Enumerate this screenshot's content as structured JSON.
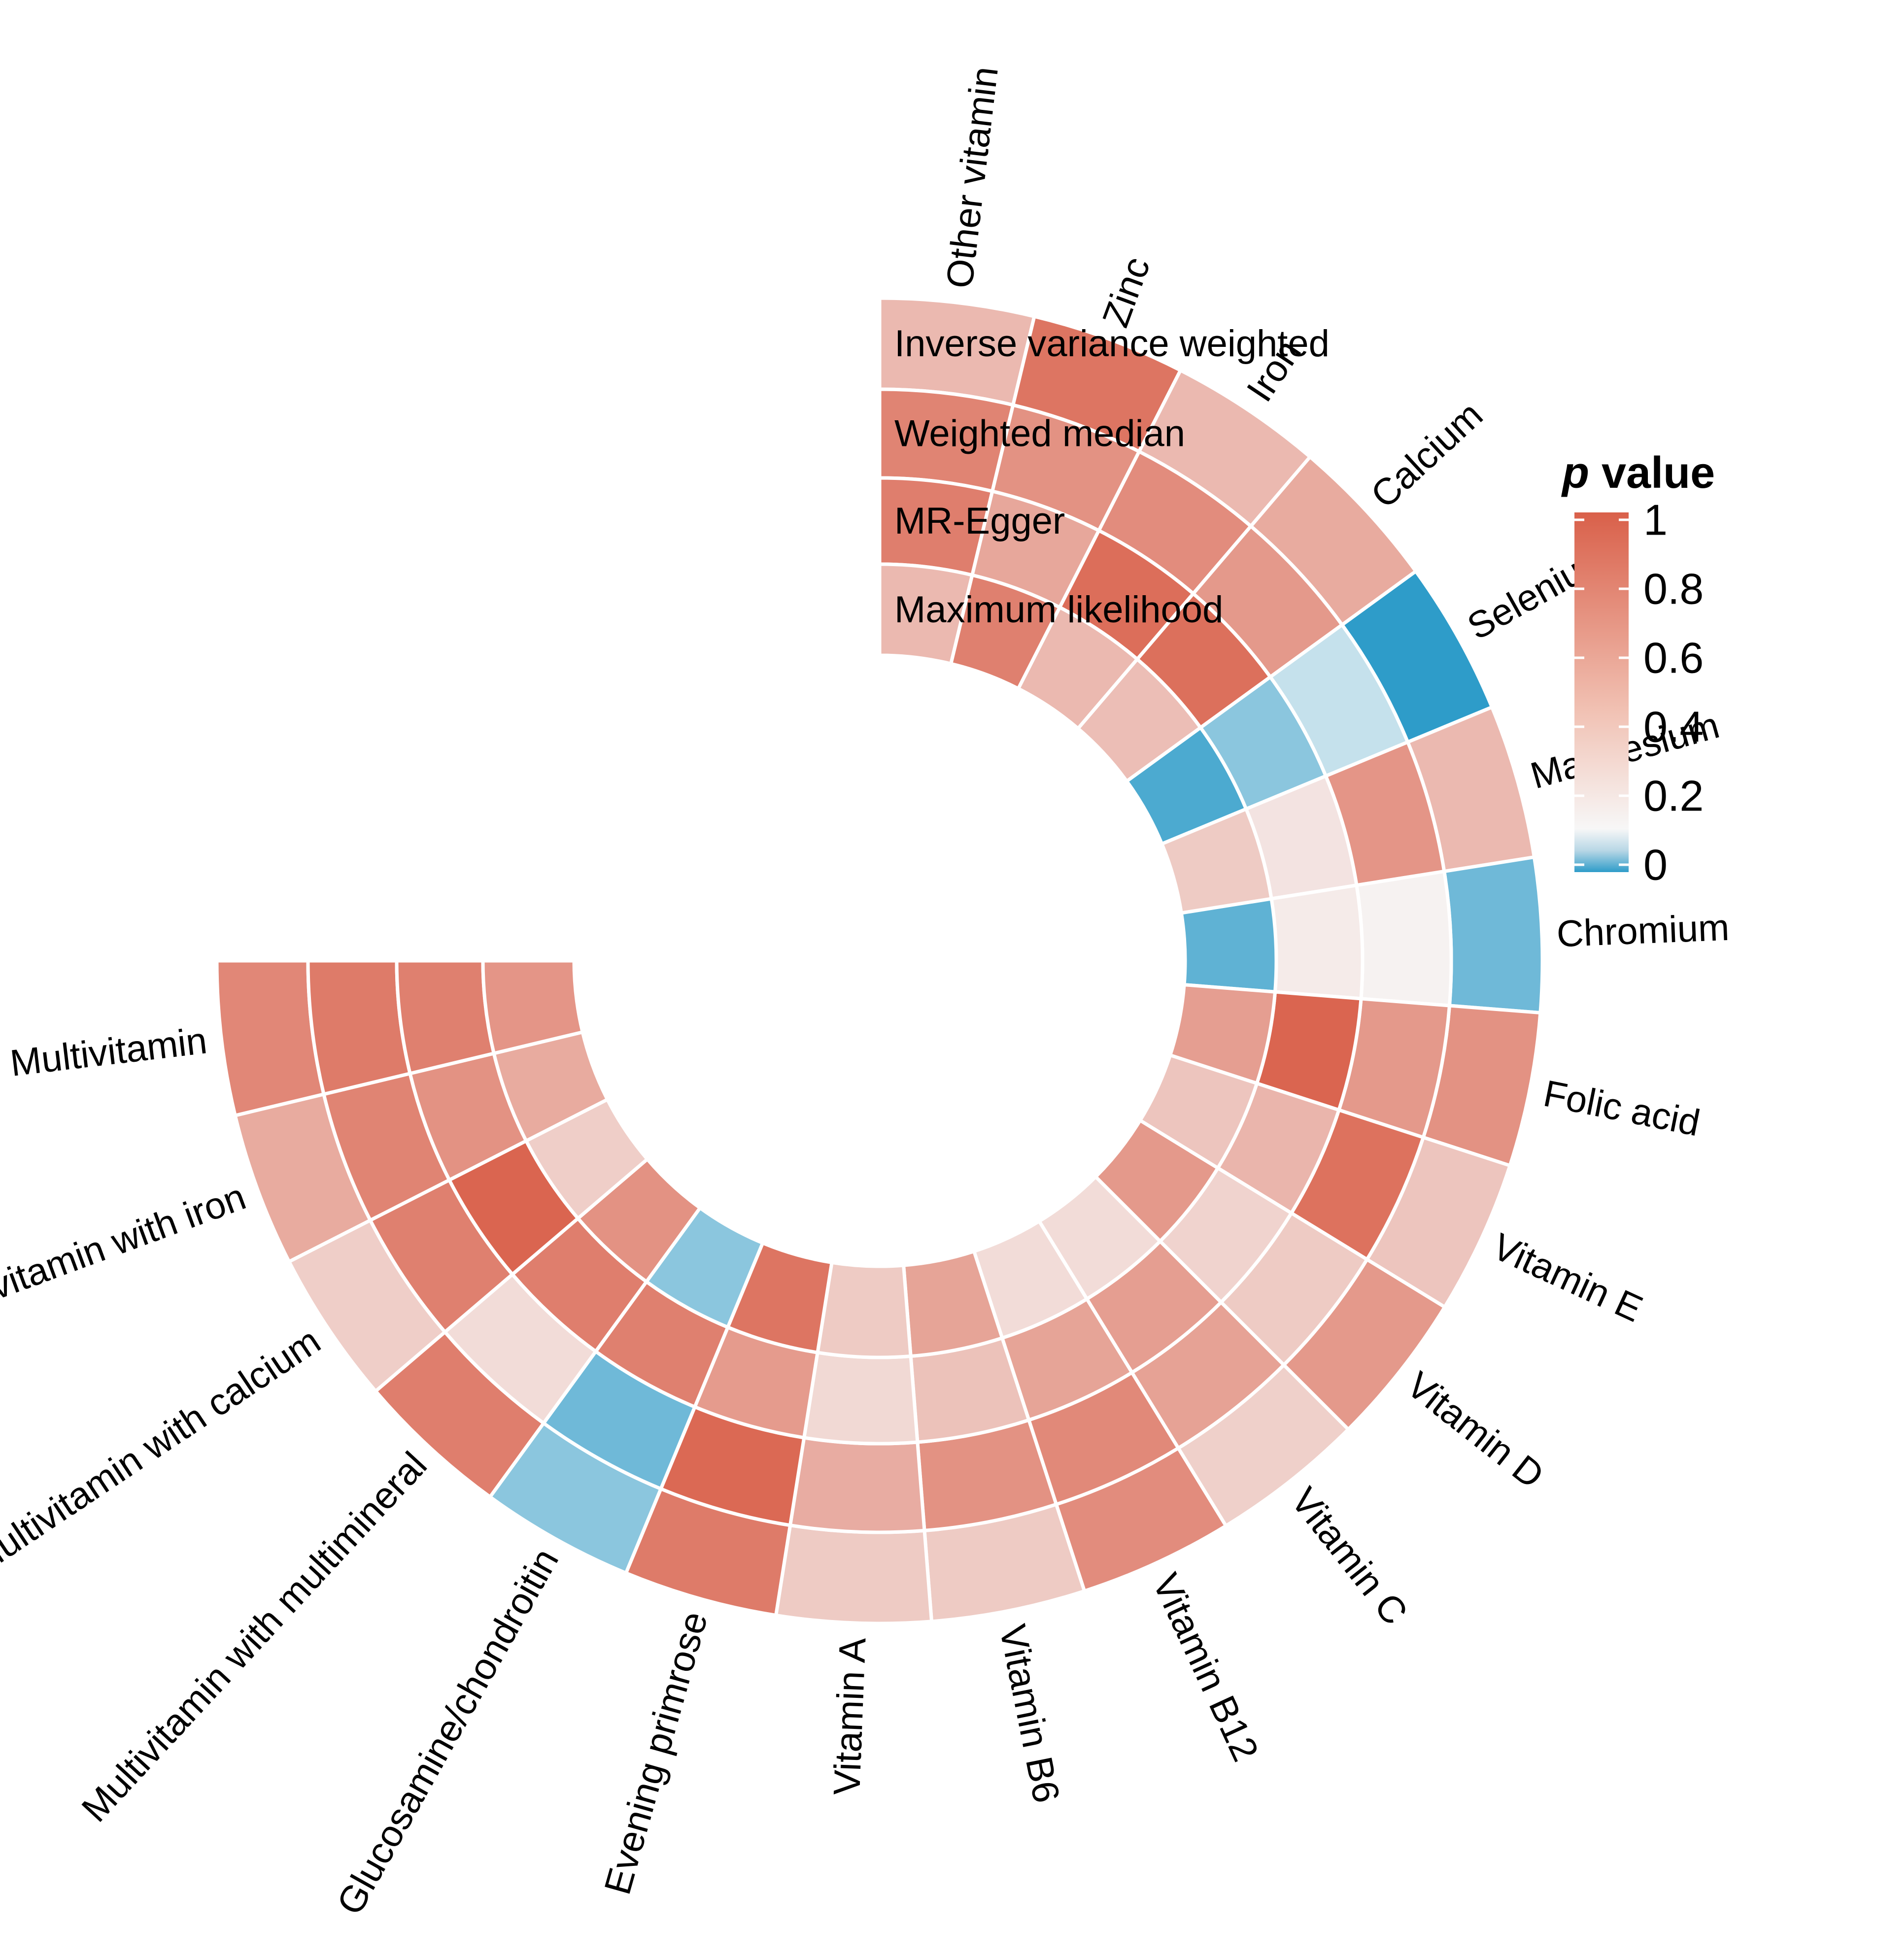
{
  "chart_data": {
    "type": "heatmap",
    "layout": "circular",
    "legend": {
      "title_symbol": "p",
      "title_rest": " value",
      "ticks": [
        "1",
        "0.8",
        "0.6",
        "0.4",
        "0.2",
        "0"
      ],
      "tick_values": [
        1,
        0.8,
        0.6,
        0.4,
        0.2,
        0
      ],
      "placement": "right",
      "colors": {
        "low": "#2e9cc9",
        "mid": "#f7f7f7",
        "high": "#d9604a"
      }
    },
    "rings": [
      "Inverse variance weighted",
      "Weighted median",
      "MR-Egger",
      "Maximum likelihood"
    ],
    "categories": [
      "Other vitamin",
      "Zinc",
      "Iron",
      "Calcium",
      "Selenium",
      "Magnesium",
      "Chromium",
      "Folic acid",
      "Vitamin E",
      "Vitamin D",
      "Vitamin C",
      "Vitamin B12",
      "Vitamin B6",
      "Vitamin A",
      "Evening primrose",
      "Glucosamine/chondroitin",
      "Multivitamin with multimineral",
      "Multivitamin with calcium",
      "Multivitamin with iron",
      "Multivitamin"
    ],
    "series": [
      {
        "name": "Inverse variance weighted",
        "values": [
          0.5,
          0.88,
          0.5,
          0.58,
          0.0,
          0.5,
          0.03,
          0.72,
          0.43,
          0.68,
          0.37,
          0.75,
          0.4,
          0.4,
          0.85,
          0.05,
          0.83,
          0.38,
          0.58,
          0.78
        ]
      },
      {
        "name": "Weighted median",
        "values": [
          0.8,
          0.72,
          0.75,
          0.68,
          0.1,
          0.7,
          0.18,
          0.68,
          0.9,
          0.4,
          0.63,
          0.77,
          0.72,
          0.57,
          0.95,
          0.03,
          0.3,
          0.82,
          0.8,
          0.85
        ]
      },
      {
        "name": "MR-Egger",
        "values": [
          0.83,
          0.6,
          0.92,
          0.91,
          0.05,
          0.26,
          0.22,
          0.97,
          0.52,
          0.35,
          0.65,
          0.62,
          0.45,
          0.32,
          0.67,
          0.82,
          0.83,
          0.97,
          0.72,
          0.82
        ]
      },
      {
        "name": "Maximum likelihood",
        "values": [
          0.5,
          0.82,
          0.5,
          0.47,
          0.01,
          0.4,
          0.02,
          0.65,
          0.43,
          0.68,
          0.3,
          0.3,
          0.62,
          0.4,
          0.88,
          0.05,
          0.72,
          0.38,
          0.58,
          0.7
        ]
      }
    ]
  }
}
